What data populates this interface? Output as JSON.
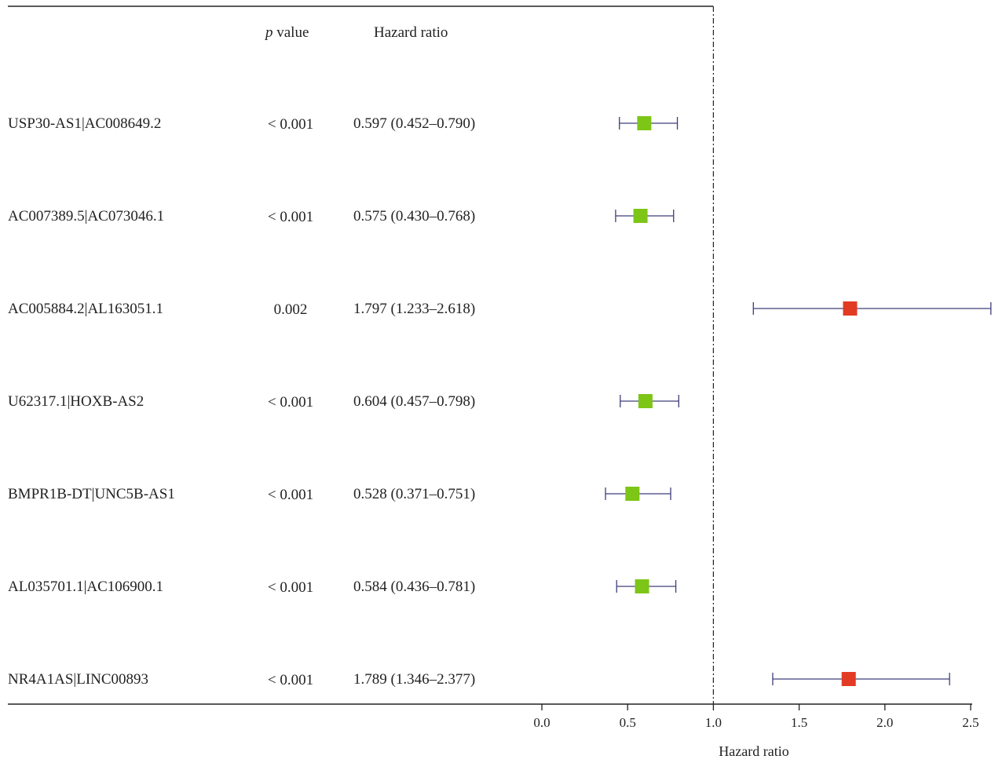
{
  "chart_data": {
    "type": "forest",
    "headers": {
      "p": "p",
      "p_suffix": " value",
      "hr": "Hazard ratio"
    },
    "rows": [
      {
        "name": "USP30-AS1|AC008649.2",
        "p": "< 0.001",
        "hr_text": "0.597 (0.452–0.790)",
        "hr": 0.597,
        "lo": 0.452,
        "hi": 0.79
      },
      {
        "name": "AC007389.5|AC073046.1",
        "p": "< 0.001",
        "hr_text": "0.575 (0.430–0.768)",
        "hr": 0.575,
        "lo": 0.43,
        "hi": 0.768
      },
      {
        "name": "AC005884.2|AL163051.1",
        "p": "0.002",
        "hr_text": "1.797 (1.233–2.618)",
        "hr": 1.797,
        "lo": 1.233,
        "hi": 2.618
      },
      {
        "name": "U62317.1|HOXB-AS2",
        "p": "< 0.001",
        "hr_text": "0.604 (0.457–0.798)",
        "hr": 0.604,
        "lo": 0.457,
        "hi": 0.798
      },
      {
        "name": "BMPR1B-DT|UNC5B-AS1",
        "p": "< 0.001",
        "hr_text": "0.528 (0.371–0.751)",
        "hr": 0.528,
        "lo": 0.371,
        "hi": 0.751
      },
      {
        "name": "AL035701.1|AC106900.1",
        "p": "< 0.001",
        "hr_text": "0.584 (0.436–0.781)",
        "hr": 0.584,
        "lo": 0.436,
        "hi": 0.781
      },
      {
        "name": "NR4A1AS|LINC00893",
        "p": "< 0.001",
        "hr_text": "1.789 (1.346–2.377)",
        "hr": 1.789,
        "lo": 1.346,
        "hi": 2.377
      }
    ],
    "xticks": [
      0.0,
      0.5,
      1.0,
      1.5,
      2.0,
      2.5
    ],
    "xtick_labels": [
      "0.0",
      "0.5",
      "1.0",
      "1.5",
      "2.0",
      "2.5"
    ],
    "xlim": [
      0,
      2.5
    ],
    "reference_line": 1.0,
    "xlabel": "Hazard ratio",
    "colors": {
      "protective": "#7dc516",
      "risk": "#e23b24",
      "ci_line": "#3d3d7a",
      "axis": "#222222"
    }
  }
}
